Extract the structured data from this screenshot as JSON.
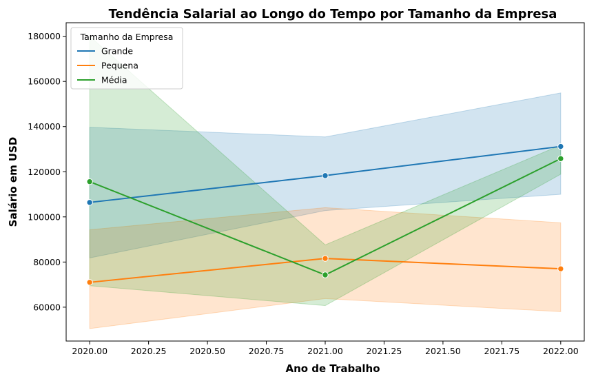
{
  "chart_data": {
    "type": "line",
    "title": "Tendência Salarial ao Longo do Tempo por Tamanho da Empresa",
    "xlabel": "Ano de Trabalho",
    "ylabel": "Salário em USD",
    "x": [
      2020,
      2021,
      2022
    ],
    "xlim": [
      1999.9,
      2022.1
    ],
    "ylim": [
      45000,
      186000
    ],
    "xticks": [
      "2020.00",
      "2020.25",
      "2020.50",
      "2020.75",
      "2021.00",
      "2021.25",
      "2021.50",
      "2021.75",
      "2022.00"
    ],
    "xtick_values": [
      2020.0,
      2020.25,
      2020.5,
      2020.75,
      2021.0,
      2021.25,
      2021.5,
      2021.75,
      2022.0
    ],
    "yticks": [
      "60000",
      "80000",
      "100000",
      "120000",
      "140000",
      "160000",
      "180000"
    ],
    "ytick_values": [
      60000,
      80000,
      100000,
      120000,
      140000,
      160000,
      180000
    ],
    "grid": false,
    "legend": {
      "title": "Tamanho da Empresa",
      "placement": "top-left"
    },
    "series": [
      {
        "name": "Grande",
        "color": "#1f77b4",
        "values": [
          106400,
          118300,
          131200
        ],
        "ci_low": [
          81800,
          102800,
          110000
        ],
        "ci_high": [
          139700,
          135400,
          154900
        ]
      },
      {
        "name": "Pequena",
        "color": "#ff7f0e",
        "values": [
          71000,
          81600,
          77000
        ],
        "ci_low": [
          50500,
          63800,
          58000
        ],
        "ci_high": [
          94300,
          104100,
          97400
        ]
      },
      {
        "name": "Média",
        "color": "#2ca02c",
        "values": [
          115600,
          74300,
          125800
        ],
        "ci_low": [
          69500,
          60700,
          118900
        ],
        "ci_high": [
          180000,
          87600,
          131800
        ]
      }
    ]
  }
}
